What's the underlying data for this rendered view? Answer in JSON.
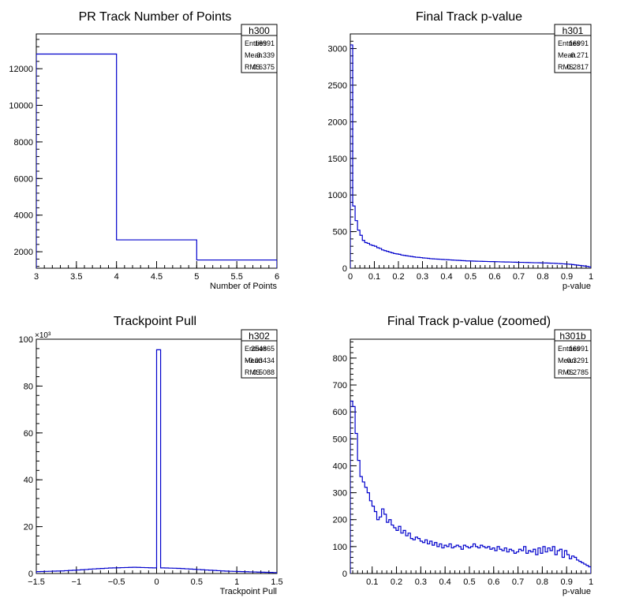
{
  "colors": {
    "line": "#0000cc",
    "axis": "#000000",
    "background": "#ffffff"
  },
  "chart_data": [
    {
      "type": "histogram",
      "title": "PR Track Number of Points",
      "xlabel": "Number of Points",
      "ylabel": "",
      "xlim": [
        3,
        6
      ],
      "ylim": [
        1100,
        13900
      ],
      "x_ticks": [
        "3",
        "3.5",
        "4",
        "4.5",
        "5",
        "5.5",
        "6"
      ],
      "y_ticks": [
        "2000",
        "4000",
        "6000",
        "8000",
        "10000",
        "12000"
      ],
      "y_exponent_label": "",
      "bin_edges": [
        3,
        4,
        5,
        6
      ],
      "values": [
        12800,
        2650,
        1550
      ],
      "stats": {
        "name": "h300",
        "entries_label": "Entries",
        "entries": "16991",
        "mean_label": "Mean",
        "mean": "3.339",
        "rms_label": "RMS",
        "rms": "0.6375"
      }
    },
    {
      "type": "histogram",
      "title": "Final Track p-value",
      "xlabel": "p-value",
      "ylabel": "",
      "xlim": [
        0,
        1
      ],
      "ylim": [
        0,
        3200
      ],
      "x_ticks": [
        "0",
        "0.1",
        "0.2",
        "0.3",
        "0.4",
        "0.5",
        "0.6",
        "0.7",
        "0.8",
        "0.9",
        "1"
      ],
      "y_ticks": [
        "0",
        "500",
        "1000",
        "1500",
        "2000",
        "2500",
        "3000"
      ],
      "y_exponent_label": "",
      "bin_edges_start": 0,
      "bin_width": 0.01,
      "values": [
        3050,
        850,
        650,
        520,
        450,
        380,
        350,
        340,
        320,
        310,
        300,
        280,
        270,
        250,
        240,
        230,
        220,
        210,
        200,
        195,
        190,
        180,
        175,
        170,
        165,
        160,
        155,
        150,
        148,
        145,
        140,
        138,
        135,
        130,
        128,
        126,
        124,
        122,
        120,
        118,
        116,
        114,
        112,
        110,
        108,
        106,
        104,
        102,
        100,
        100,
        98,
        97,
        96,
        95,
        94,
        93,
        92,
        91,
        90,
        90,
        89,
        88,
        87,
        86,
        85,
        85,
        84,
        83,
        82,
        81,
        80,
        80,
        79,
        78,
        77,
        76,
        75,
        75,
        74,
        73,
        72,
        71,
        70,
        69,
        68,
        66,
        64,
        62,
        60,
        58,
        56,
        54,
        50,
        46,
        42,
        38,
        34,
        30,
        25,
        18
      ],
      "stats": {
        "name": "h301",
        "entries_label": "Entries",
        "entries": "16991",
        "mean_label": "Mean",
        "mean": "0.271",
        "rms_label": "RMS",
        "rms": "0.2817"
      }
    },
    {
      "type": "histogram",
      "title": "Trackpoint Pull",
      "xlabel": "Trackpoint Pull",
      "ylabel": "",
      "xlim": [
        -1.5,
        1.5
      ],
      "ylim": [
        0,
        100000
      ],
      "x_ticks": [
        "−1.5",
        "−1",
        "−0.5",
        "0",
        "0.5",
        "1",
        "1.5"
      ],
      "y_ticks": [
        "0",
        "20",
        "40",
        "60",
        "80",
        "100"
      ],
      "y_exponent_label": "×10³",
      "bin_edges_start": -1.5,
      "bin_width": 0.05,
      "values": [
        800,
        850,
        900,
        950,
        1000,
        1050,
        1100,
        1200,
        1300,
        1400,
        1500,
        1600,
        1700,
        1850,
        1950,
        2050,
        2150,
        2250,
        2350,
        2400,
        2450,
        2500,
        2550,
        2600,
        2650,
        2600,
        2550,
        2500,
        2450,
        2400,
        95500,
        2400,
        2350,
        2300,
        2250,
        2200,
        2100,
        2000,
        1900,
        1800,
        1700,
        1600,
        1500,
        1400,
        1300,
        1200,
        1100,
        1000,
        950,
        900,
        850,
        800,
        750,
        700,
        650,
        600,
        550,
        500,
        450,
        400
      ],
      "stats": {
        "name": "h302",
        "entries_label": "Entries",
        "entries": "254865",
        "mean_label": "Mean",
        "mean": "−0.03434",
        "rms_label": "RMS",
        "rms": "0.5088"
      }
    },
    {
      "type": "histogram",
      "title": "Final Track p-value (zoomed)",
      "xlabel": "p-value",
      "ylabel": "",
      "xlim": [
        0.01,
        1
      ],
      "ylim": [
        0,
        870
      ],
      "x_ticks": [
        "0.1",
        "0.2",
        "0.3",
        "0.4",
        "0.5",
        "0.6",
        "0.7",
        "0.8",
        "0.9",
        "1"
      ],
      "y_ticks": [
        "0",
        "100",
        "200",
        "300",
        "400",
        "500",
        "600",
        "700",
        "800"
      ],
      "y_exponent_label": "",
      "bin_edges_start": 0.01,
      "bin_width": 0.0099,
      "values": [
        640,
        620,
        520,
        420,
        360,
        340,
        320,
        300,
        270,
        250,
        230,
        200,
        210,
        240,
        220,
        190,
        200,
        180,
        170,
        160,
        175,
        150,
        160,
        140,
        150,
        130,
        125,
        135,
        130,
        120,
        115,
        125,
        110,
        120,
        105,
        115,
        100,
        110,
        95,
        105,
        100,
        110,
        95,
        100,
        105,
        100,
        90,
        105,
        100,
        95,
        100,
        110,
        100,
        95,
        105,
        100,
        95,
        100,
        90,
        95,
        85,
        100,
        90,
        85,
        95,
        80,
        90,
        85,
        75,
        80,
        90,
        85,
        100,
        75,
        85,
        80,
        90,
        70,
        95,
        75,
        100,
        80,
        95,
        85,
        100,
        70,
        85,
        90,
        60,
        85,
        70,
        55,
        65,
        60,
        50,
        45,
        40,
        35,
        30,
        25
      ],
      "stats": {
        "name": "h301b",
        "entries_label": "Entries",
        "entries": "16991",
        "mean_label": "Mean",
        "mean": "0.3291",
        "rms_label": "RMS",
        "rms": "0.2785"
      }
    }
  ]
}
